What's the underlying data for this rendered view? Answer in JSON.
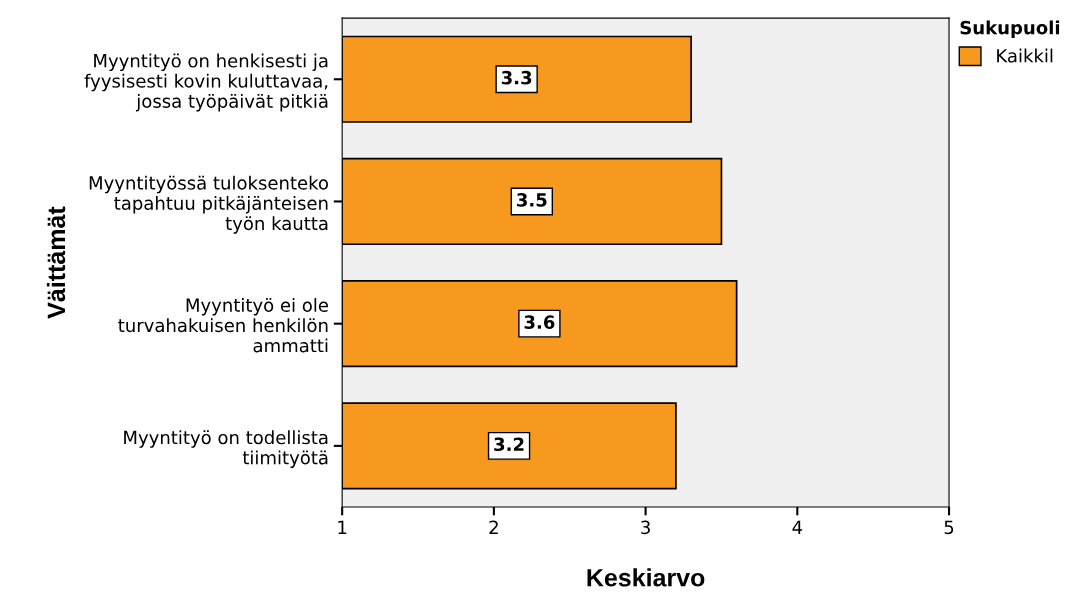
{
  "chart_data": {
    "type": "bar",
    "orientation": "horizontal",
    "xlabel": "Keskiarvo",
    "ylabel": "Väittämät",
    "legend_title": "Sukupuoli",
    "categories": [
      "Myyntityö on henkisesti ja\nfyysisesti kovin kuluttavaa,\njossa työpäivät pitkiä",
      "Myyntityössä tuloksenteko\ntapahtuu pitkäjänteisen\ntyön kautta",
      "Myyntityö ei ole\nturvahakuisen henkilön\nammatti",
      "Myyntityö on todellista\ntiimityötä"
    ],
    "series": [
      {
        "name": "Kaikkil",
        "color": "#f7991f",
        "values": [
          3.3,
          3.5,
          3.6,
          3.2
        ]
      }
    ],
    "xlim": [
      1,
      5
    ],
    "xticks": [
      1,
      2,
      3,
      4,
      5
    ],
    "data_labels": true,
    "grid": false,
    "legend": "top right"
  }
}
